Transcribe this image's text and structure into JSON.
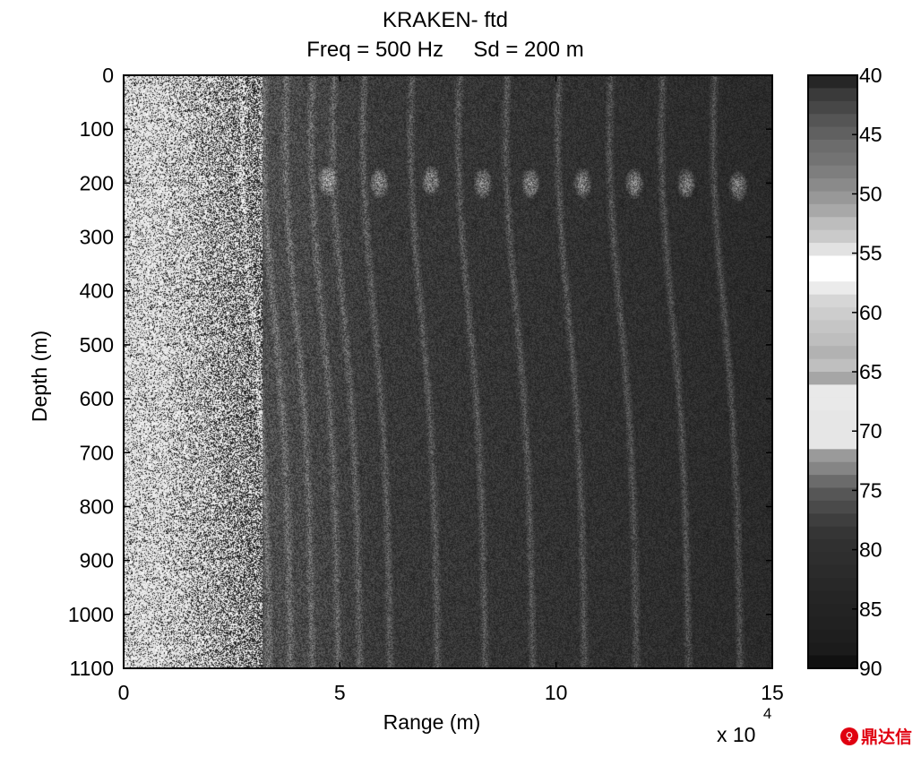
{
  "chart_data": {
    "type": "heatmap",
    "title": "KRAKEN- ftd",
    "subtitle": "Freq = 500 Hz     Sd = 200 m",
    "xlabel": "Range (m)",
    "ylabel": "Depth (m)",
    "x_multiplier_label": "x 10",
    "x_multiplier_exponent": "4",
    "xlim": [
      0,
      15
    ],
    "ylim": [
      0,
      1100
    ],
    "y_reversed": true,
    "x_ticks": [
      "0",
      "5",
      "10",
      "15"
    ],
    "x_tick_values": [
      0,
      5,
      10,
      15
    ],
    "y_ticks": [
      "0",
      "100",
      "200",
      "300",
      "400",
      "500",
      "600",
      "700",
      "800",
      "900",
      "1000",
      "1100"
    ],
    "y_tick_values": [
      0,
      100,
      200,
      300,
      400,
      500,
      600,
      700,
      800,
      900,
      1000,
      1100
    ],
    "colorbar": {
      "range": [
        40,
        90
      ],
      "ticks": [
        "40",
        "45",
        "50",
        "55",
        "60",
        "65",
        "70",
        "75",
        "80",
        "85",
        "90"
      ],
      "tick_values": [
        40,
        45,
        50,
        55,
        60,
        65,
        70,
        75,
        80,
        85,
        90
      ],
      "colors": [
        "#262626",
        "#3a3a3a",
        "#474747",
        "#555555",
        "#606060",
        "#6c6c6c",
        "#737373",
        "#7e7e7e",
        "#8a8a8a",
        "#989898",
        "#a8a8a8",
        "#bdbdbd",
        "#cacaca",
        "#e2e2e2",
        "#ffffff",
        "#ffffff",
        "#ebebeb",
        "#d6d6d6",
        "#cdcdcd",
        "#c5c5c5",
        "#bebebe",
        "#b2b2b2",
        "#bfbfbf",
        "#a6a6a6",
        "#e9e9e9",
        "#e9e9e9",
        "#e6e6e6",
        "#e6e6e6",
        "#e6e6e6",
        "#9a9a9a",
        "#858585",
        "#6b6b6b",
        "#565656",
        "#4a4a4a",
        "#3e3e3e",
        "#353535",
        "#303030",
        "#2e2e2e",
        "#2b2b2b",
        "#282828",
        "#252525",
        "#232323",
        "#212121",
        "#1e1e1e",
        "#1b1b1b",
        "#111111"
      ]
    },
    "range_fringes_x": [
      3.2,
      3.7,
      4.2,
      4.8,
      5.3,
      6.0,
      7.1,
      8.2,
      9.3,
      10.5,
      11.7,
      12.9,
      14.1
    ],
    "focus_points": [
      {
        "x": 4.7,
        "y": 195
      },
      {
        "x": 5.9,
        "y": 200
      },
      {
        "x": 7.1,
        "y": 195
      },
      {
        "x": 8.3,
        "y": 200
      },
      {
        "x": 9.4,
        "y": 200
      },
      {
        "x": 10.6,
        "y": 200
      },
      {
        "x": 11.8,
        "y": 200
      },
      {
        "x": 13.0,
        "y": 200
      },
      {
        "x": 14.2,
        "y": 205
      }
    ]
  },
  "watermark": {
    "icon_glyph": "♀",
    "text": "鼎达信"
  }
}
